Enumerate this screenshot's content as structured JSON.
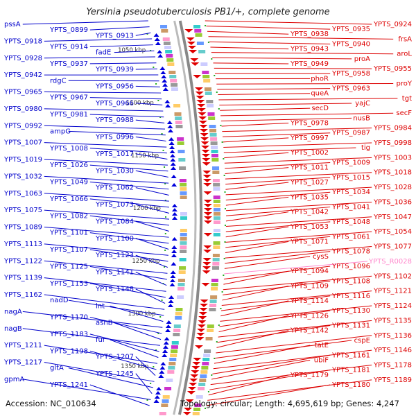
{
  "title": "Yersinia pseudotuberculosis PB1/+, complete genome",
  "footer": {
    "accession": "Accession: NC_010634",
    "topology": "Topology: circular; Length: 4,695,619 bp; Genes: 4,247"
  },
  "colors": {
    "left_labels": "#0000cc",
    "right_labels": "#dd0000",
    "rna_label": "#ff88cc",
    "tick_dot": "#22aa22"
  },
  "ruler": {
    "ticks": [
      "1050 kbp",
      "1100 kbp",
      "1150 kbp",
      "1200 kbp",
      "1250 kbp",
      "1300 kbp",
      "1350 kbp"
    ]
  },
  "left_labels": [
    "pssA",
    "YPTS_0899",
    "YPTS_0913",
    "YPTS_0918",
    "YPTS_0914",
    "fadE",
    "YPTS_0928",
    "YPTS_0937",
    "YPTS_0939",
    "YPTS_0942",
    "rdgC",
    "YPTS_0956",
    "YPTS_0965",
    "YPTS_0967",
    "YPTS_0966",
    "YPTS_0980",
    "YPTS_0981",
    "YPTS_0988",
    "YPTS_0992",
    "ampG",
    "YPTS_0996",
    "YPTS_1007",
    "YPTS_1008",
    "YPTS_1017",
    "YPTS_1019",
    "YPTS_1026",
    "YPTS_1030",
    "YPTS_1032",
    "YPTS_1049",
    "YPTS_1062",
    "YPTS_1063",
    "YPTS_1066",
    "YPTS_1073",
    "YPTS_1075",
    "YPTS_1082",
    "YPTS_1084",
    "YPTS_1089",
    "YPTS_1101",
    "YPTS_1100",
    "YPTS_1113",
    "YPTS_1107",
    "YPTS_1123",
    "YPTS_1122",
    "YPTS_1125",
    "YPTS_1141",
    "YPTS_1139",
    "YPTS_1153",
    "YPTS_1148",
    "YPTS_1162",
    "nadD",
    "lnt",
    "nagA",
    "YPTS_1170",
    "asnB",
    "nagB",
    "YPTS_1183",
    "fur",
    "YPTS_1211",
    "YPTS_1198",
    "YPTS_1207",
    "YPTS_1217",
    "gltA",
    "YPTS_1245",
    "gpmA",
    "YPTS_1241"
  ],
  "right_labels": [
    "YPTS_0924",
    "YPTS_0935",
    "YPTS_0938",
    "frsA",
    "YPTS_0940",
    "YPTS_0943",
    "aroL",
    "proA",
    "YPTS_0949",
    "YPTS_0955",
    "YPTS_0958",
    "phoR",
    "proY",
    "YPTS_0963",
    "queA",
    "tgt",
    "yajC",
    "secD",
    "secF",
    "nusB",
    "YPTS_0978",
    "YPTS_0984",
    "YPTS_0987",
    "YPTS_0997",
    "YPTS_0998",
    "tig",
    "YPTS_1002",
    "YPTS_1003",
    "YPTS_1009",
    "YPTS_1011",
    "YPTS_1018",
    "YPTS_1015",
    "YPTS_1027",
    "YPTS_1028",
    "YPTS_1034",
    "YPTS_1035",
    "YPTS_1036",
    "YPTS_1041",
    "YPTS_1042",
    "YPTS_1047",
    "YPTS_1048",
    "YPTS_1053",
    "YPTS_1054",
    "YPTS_1061",
    "YPTS_1071",
    "YPTS_1077",
    "YPTS_1078",
    "cysS",
    "YPTS_R0028",
    "YPTS_1096",
    "YPTS_1094",
    "YPTS_1102",
    "YPTS_1108",
    "YPTS_1109",
    "YPTS_1121",
    "YPTS_1116",
    "YPTS_1114",
    "YPTS_1124",
    "YPTS_1130",
    "YPTS_1126",
    "YPTS_1135",
    "YPTS_1131",
    "YPTS_1142",
    "YPTS_1136",
    "cspE",
    "tatE",
    "YPTS_1146",
    "YPTS_1161",
    "ubiF",
    "YPTS_1178",
    "YPTS_1181",
    "YPTS_1179",
    "YPTS_1189",
    "YPTS_1180"
  ]
}
